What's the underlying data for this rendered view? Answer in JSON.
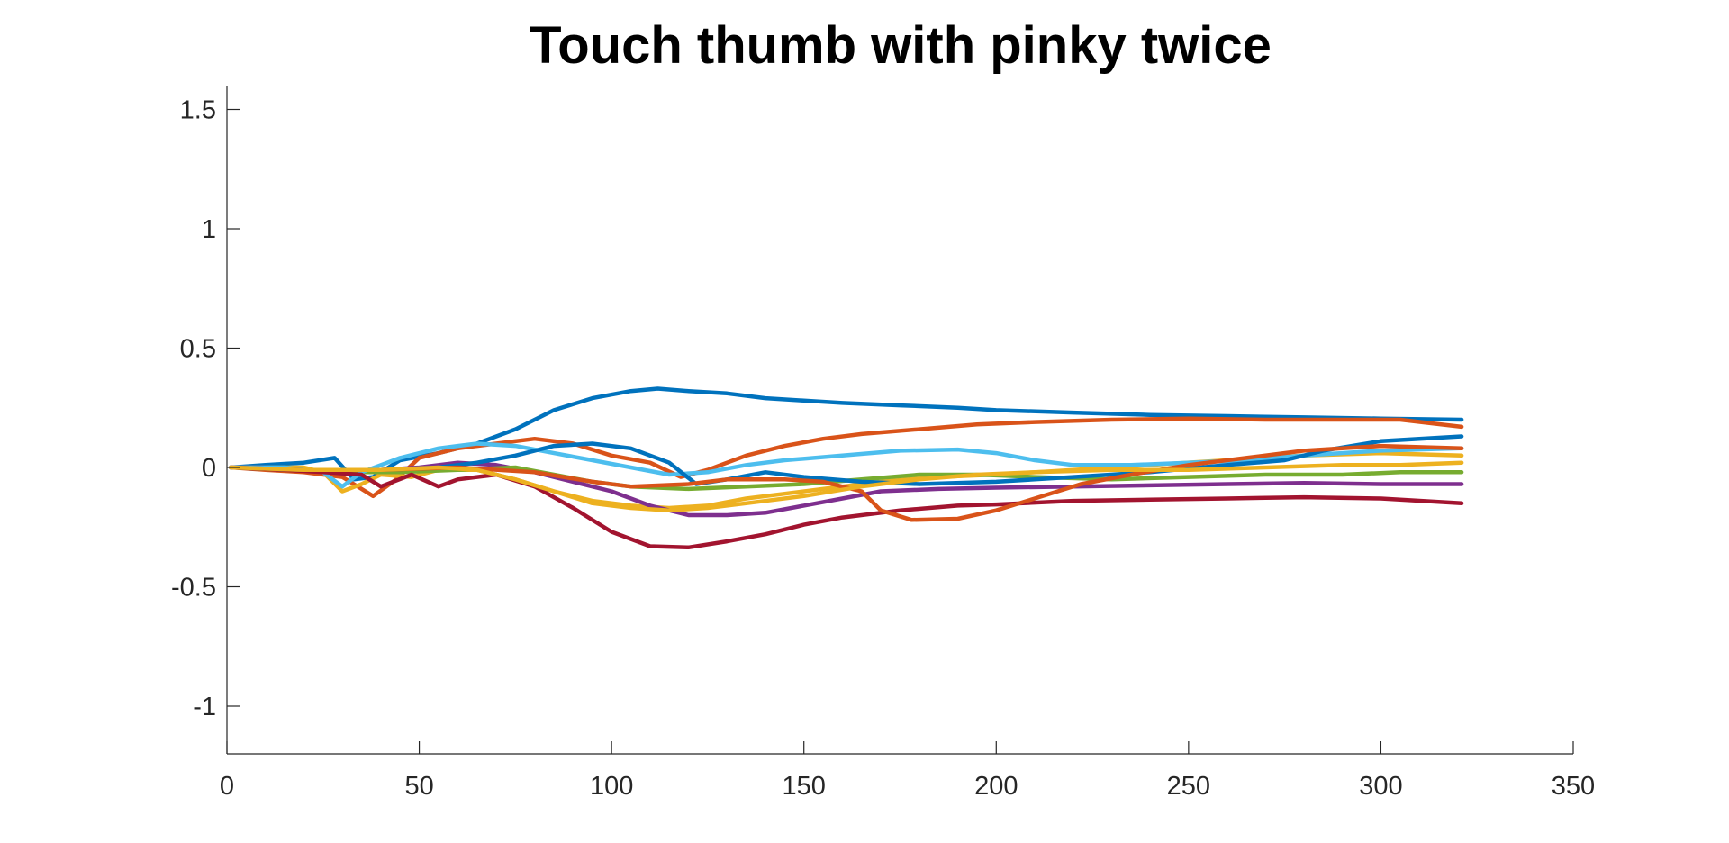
{
  "chart_data": {
    "type": "line",
    "title": "Touch thumb with pinky twice",
    "xlabel": "",
    "ylabel": "",
    "xlim": [
      0,
      350
    ],
    "ylim": [
      -1.2,
      1.6
    ],
    "xticks": [
      0,
      50,
      100,
      150,
      200,
      250,
      300,
      350
    ],
    "yticks": [
      -1,
      -0.5,
      0,
      0.5,
      1,
      1.5
    ],
    "xtick_labels": [
      "0",
      "50",
      "100",
      "150",
      "200",
      "250",
      "300",
      "350"
    ],
    "ytick_labels": [
      "-1",
      "-0.5",
      "0",
      "0.5",
      "1",
      "1.5"
    ],
    "grid": false,
    "legend": false,
    "series": [
      {
        "color": "#0072BD",
        "points": [
          [
            1,
            0
          ],
          [
            10,
            0.01
          ],
          [
            20,
            0.02
          ],
          [
            28,
            0.04
          ],
          [
            33,
            -0.05
          ],
          [
            38,
            -0.04
          ],
          [
            45,
            0.03
          ],
          [
            55,
            0.06
          ],
          [
            65,
            0.1
          ],
          [
            75,
            0.16
          ],
          [
            85,
            0.24
          ],
          [
            95,
            0.29
          ],
          [
            105,
            0.32
          ],
          [
            112,
            0.33
          ],
          [
            120,
            0.32
          ],
          [
            130,
            0.31
          ],
          [
            140,
            0.29
          ],
          [
            150,
            0.28
          ],
          [
            160,
            0.27
          ],
          [
            175,
            0.26
          ],
          [
            190,
            0.25
          ],
          [
            200,
            0.24
          ],
          [
            220,
            0.23
          ],
          [
            240,
            0.22
          ],
          [
            260,
            0.215
          ],
          [
            280,
            0.21
          ],
          [
            300,
            0.205
          ],
          [
            321,
            0.2
          ]
        ]
      },
      {
        "color": "#D95319",
        "points": [
          [
            1,
            0
          ],
          [
            10,
            -0.01
          ],
          [
            20,
            -0.02
          ],
          [
            30,
            -0.04
          ],
          [
            38,
            -0.12
          ],
          [
            44,
            -0.05
          ],
          [
            50,
            0.04
          ],
          [
            60,
            0.08
          ],
          [
            70,
            0.1
          ],
          [
            80,
            0.12
          ],
          [
            90,
            0.1
          ],
          [
            100,
            0.05
          ],
          [
            110,
            0.02
          ],
          [
            118,
            -0.04
          ],
          [
            125,
            -0.01
          ],
          [
            135,
            0.05
          ],
          [
            145,
            0.09
          ],
          [
            155,
            0.12
          ],
          [
            165,
            0.14
          ],
          [
            180,
            0.16
          ],
          [
            195,
            0.18
          ],
          [
            210,
            0.19
          ],
          [
            230,
            0.2
          ],
          [
            250,
            0.205
          ],
          [
            270,
            0.2
          ],
          [
            290,
            0.2
          ],
          [
            305,
            0.2
          ],
          [
            321,
            0.17
          ]
        ]
      },
      {
        "color": "#EDB120",
        "points": [
          [
            1,
            0
          ],
          [
            10,
            0
          ],
          [
            20,
            0
          ],
          [
            25,
            -0.02
          ],
          [
            30,
            -0.1
          ],
          [
            35,
            -0.07
          ],
          [
            40,
            -0.03
          ],
          [
            48,
            -0.04
          ],
          [
            55,
            -0.01
          ],
          [
            65,
            -0.01
          ],
          [
            75,
            -0.05
          ],
          [
            85,
            -0.1
          ],
          [
            95,
            -0.14
          ],
          [
            105,
            -0.16
          ],
          [
            115,
            -0.17
          ],
          [
            125,
            -0.16
          ],
          [
            135,
            -0.13
          ],
          [
            145,
            -0.11
          ],
          [
            155,
            -0.09
          ],
          [
            170,
            -0.06
          ],
          [
            185,
            -0.04
          ],
          [
            200,
            -0.03
          ],
          [
            220,
            -0.01
          ],
          [
            240,
            0.01
          ],
          [
            260,
            0.03
          ],
          [
            280,
            0.05
          ],
          [
            300,
            0.06
          ],
          [
            321,
            0.05
          ]
        ]
      },
      {
        "color": "#7E2F8E",
        "points": [
          [
            1,
            0
          ],
          [
            10,
            0
          ],
          [
            20,
            -0.01
          ],
          [
            30,
            -0.02
          ],
          [
            40,
            -0.01
          ],
          [
            50,
            0
          ],
          [
            60,
            0.02
          ],
          [
            70,
            0.01
          ],
          [
            80,
            -0.02
          ],
          [
            90,
            -0.06
          ],
          [
            100,
            -0.1
          ],
          [
            110,
            -0.16
          ],
          [
            120,
            -0.2
          ],
          [
            130,
            -0.2
          ],
          [
            140,
            -0.19
          ],
          [
            150,
            -0.16
          ],
          [
            160,
            -0.13
          ],
          [
            170,
            -0.1
          ],
          [
            185,
            -0.09
          ],
          [
            200,
            -0.085
          ],
          [
            220,
            -0.08
          ],
          [
            240,
            -0.075
          ],
          [
            260,
            -0.07
          ],
          [
            280,
            -0.065
          ],
          [
            300,
            -0.07
          ],
          [
            321,
            -0.07
          ]
        ]
      },
      {
        "color": "#77AC30",
        "points": [
          [
            1,
            0
          ],
          [
            15,
            -0.01
          ],
          [
            30,
            -0.02
          ],
          [
            45,
            -0.02
          ],
          [
            60,
            -0.01
          ],
          [
            75,
            0
          ],
          [
            85,
            -0.03
          ],
          [
            95,
            -0.06
          ],
          [
            105,
            -0.08
          ],
          [
            120,
            -0.09
          ],
          [
            135,
            -0.08
          ],
          [
            150,
            -0.07
          ],
          [
            165,
            -0.05
          ],
          [
            180,
            -0.03
          ],
          [
            195,
            -0.03
          ],
          [
            210,
            -0.04
          ],
          [
            230,
            -0.05
          ],
          [
            250,
            -0.04
          ],
          [
            270,
            -0.03
          ],
          [
            290,
            -0.03
          ],
          [
            305,
            -0.02
          ],
          [
            321,
            -0.02
          ]
        ]
      },
      {
        "color": "#4DBEEE",
        "points": [
          [
            1,
            0
          ],
          [
            15,
            0
          ],
          [
            25,
            -0.02
          ],
          [
            30,
            -0.08
          ],
          [
            35,
            -0.02
          ],
          [
            45,
            0.04
          ],
          [
            55,
            0.08
          ],
          [
            65,
            0.1
          ],
          [
            75,
            0.09
          ],
          [
            85,
            0.06
          ],
          [
            95,
            0.03
          ],
          [
            105,
            0
          ],
          [
            115,
            -0.03
          ],
          [
            125,
            -0.02
          ],
          [
            135,
            0.01
          ],
          [
            145,
            0.03
          ],
          [
            160,
            0.05
          ],
          [
            175,
            0.07
          ],
          [
            190,
            0.075
          ],
          [
            200,
            0.06
          ],
          [
            210,
            0.03
          ],
          [
            220,
            0.01
          ],
          [
            235,
            0.01
          ],
          [
            250,
            0.02
          ],
          [
            265,
            0.03
          ],
          [
            280,
            0.05
          ],
          [
            300,
            0.07
          ],
          [
            321,
            0.08
          ]
        ]
      },
      {
        "color": "#A2142F",
        "points": [
          [
            1,
            0
          ],
          [
            15,
            -0.01
          ],
          [
            25,
            -0.02
          ],
          [
            35,
            -0.03
          ],
          [
            40,
            -0.08
          ],
          [
            48,
            -0.03
          ],
          [
            55,
            -0.08
          ],
          [
            60,
            -0.05
          ],
          [
            70,
            -0.03
          ],
          [
            80,
            -0.08
          ],
          [
            90,
            -0.17
          ],
          [
            100,
            -0.27
          ],
          [
            110,
            -0.33
          ],
          [
            120,
            -0.335
          ],
          [
            130,
            -0.31
          ],
          [
            140,
            -0.28
          ],
          [
            150,
            -0.24
          ],
          [
            160,
            -0.21
          ],
          [
            175,
            -0.18
          ],
          [
            190,
            -0.16
          ],
          [
            200,
            -0.155
          ],
          [
            220,
            -0.14
          ],
          [
            240,
            -0.135
          ],
          [
            260,
            -0.13
          ],
          [
            280,
            -0.125
          ],
          [
            300,
            -0.13
          ],
          [
            321,
            -0.15
          ]
        ]
      },
      {
        "color": "#0072BD",
        "points": [
          [
            1,
            0
          ],
          [
            20,
            -0.01
          ],
          [
            40,
            -0.01
          ],
          [
            55,
            0
          ],
          [
            65,
            0.02
          ],
          [
            75,
            0.05
          ],
          [
            85,
            0.09
          ],
          [
            95,
            0.1
          ],
          [
            105,
            0.08
          ],
          [
            115,
            0.02
          ],
          [
            122,
            -0.07
          ],
          [
            130,
            -0.05
          ],
          [
            140,
            -0.02
          ],
          [
            150,
            -0.04
          ],
          [
            165,
            -0.06
          ],
          [
            180,
            -0.07
          ],
          [
            200,
            -0.06
          ],
          [
            220,
            -0.04
          ],
          [
            240,
            -0.02
          ],
          [
            260,
            0.01
          ],
          [
            275,
            0.03
          ],
          [
            285,
            0.07
          ],
          [
            300,
            0.11
          ],
          [
            321,
            0.13
          ]
        ]
      },
      {
        "color": "#D95319",
        "points": [
          [
            1,
            0
          ],
          [
            20,
            -0.01
          ],
          [
            40,
            -0.01
          ],
          [
            60,
            0
          ],
          [
            80,
            -0.02
          ],
          [
            95,
            -0.06
          ],
          [
            105,
            -0.08
          ],
          [
            120,
            -0.07
          ],
          [
            130,
            -0.05
          ],
          [
            145,
            -0.05
          ],
          [
            155,
            -0.06
          ],
          [
            165,
            -0.1
          ],
          [
            170,
            -0.18
          ],
          [
            178,
            -0.22
          ],
          [
            190,
            -0.215
          ],
          [
            200,
            -0.18
          ],
          [
            210,
            -0.13
          ],
          [
            222,
            -0.07
          ],
          [
            235,
            -0.03
          ],
          [
            250,
            0.01
          ],
          [
            265,
            0.04
          ],
          [
            280,
            0.07
          ],
          [
            300,
            0.09
          ],
          [
            321,
            0.08
          ]
        ]
      },
      {
        "color": "#EDB120",
        "points": [
          [
            1,
            0
          ],
          [
            20,
            -0.01
          ],
          [
            40,
            -0.01
          ],
          [
            55,
            0
          ],
          [
            65,
            -0.01
          ],
          [
            75,
            -0.05
          ],
          [
            85,
            -0.1
          ],
          [
            95,
            -0.15
          ],
          [
            105,
            -0.17
          ],
          [
            115,
            -0.18
          ],
          [
            125,
            -0.17
          ],
          [
            135,
            -0.15
          ],
          [
            150,
            -0.12
          ],
          [
            165,
            -0.08
          ],
          [
            180,
            -0.05
          ],
          [
            195,
            -0.03
          ],
          [
            210,
            -0.02
          ],
          [
            230,
            -0.01
          ],
          [
            250,
            -0.01
          ],
          [
            270,
            0
          ],
          [
            290,
            0.01
          ],
          [
            305,
            0.01
          ],
          [
            321,
            0.02
          ]
        ]
      }
    ]
  }
}
